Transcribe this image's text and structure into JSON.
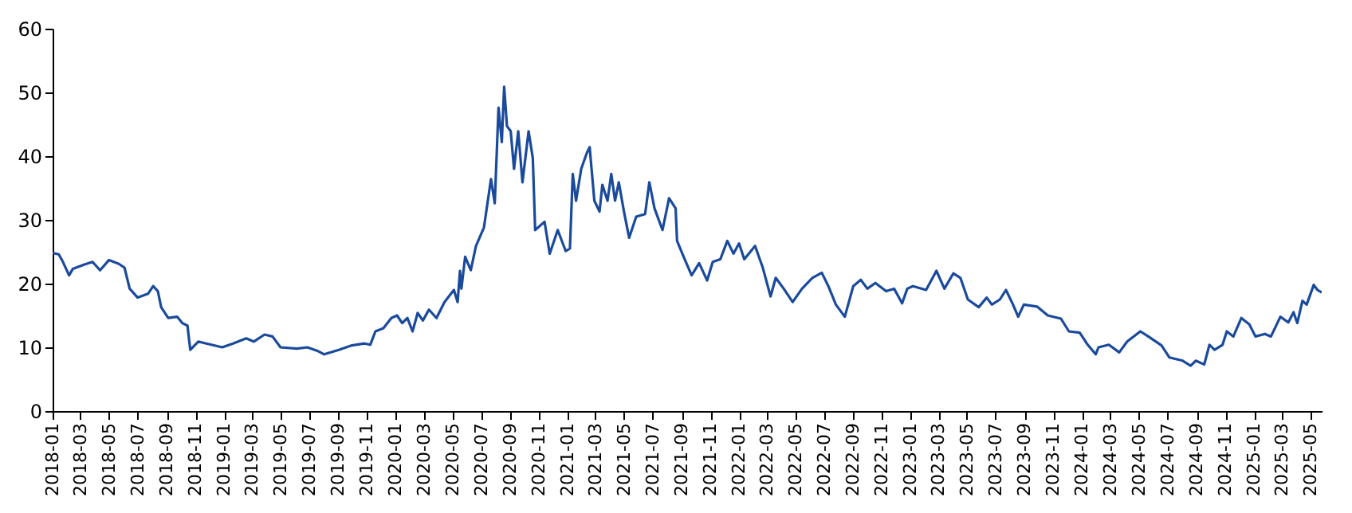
{
  "chart_data": {
    "type": "line",
    "color": "#1a4a9c",
    "grid": false,
    "xlim": [
      "2018-01-01",
      "2025-05-25"
    ],
    "ylim": [
      0,
      60
    ],
    "yticks": [
      0,
      10,
      20,
      30,
      40,
      50,
      60
    ],
    "xticks": [
      "2018-01",
      "2018-03",
      "2018-05",
      "2018-07",
      "2018-09",
      "2018-11",
      "2019-01",
      "2019-03",
      "2019-05",
      "2019-07",
      "2019-09",
      "2019-11",
      "2020-01",
      "2020-03",
      "2020-05",
      "2020-07",
      "2020-09",
      "2020-11",
      "2021-01",
      "2021-03",
      "2021-05",
      "2021-07",
      "2021-09",
      "2021-11",
      "2022-01",
      "2022-03",
      "2022-05",
      "2022-07",
      "2022-09",
      "2022-11",
      "2023-01",
      "2023-03",
      "2023-05",
      "2023-07",
      "2023-09",
      "2023-11",
      "2024-01",
      "2024-03",
      "2024-05",
      "2024-07",
      "2024-09",
      "2024-11",
      "2025-01",
      "2025-03",
      "2025-05"
    ],
    "x": [
      "2018-01-01",
      "2018-01-14",
      "2018-01-23",
      "2018-02-05",
      "2018-02-13",
      "2018-03-10",
      "2018-03-27",
      "2018-04-12",
      "2018-05-01",
      "2018-05-22",
      "2018-06-03",
      "2018-06-14",
      "2018-07-01",
      "2018-07-23",
      "2018-08-03",
      "2018-08-13",
      "2018-08-20",
      "2018-09-04",
      "2018-09-23",
      "2018-10-04",
      "2018-10-15",
      "2018-10-21",
      "2018-11-07",
      "2018-12-05",
      "2018-12-28",
      "2019-01-20",
      "2019-02-17",
      "2019-03-05",
      "2019-03-28",
      "2019-04-14",
      "2019-05-01",
      "2019-06-05",
      "2019-06-27",
      "2019-07-20",
      "2019-08-02",
      "2019-09-02",
      "2019-09-30",
      "2019-10-27",
      "2019-11-08",
      "2019-11-19",
      "2019-12-06",
      "2019-12-23",
      "2020-01-04",
      "2020-01-15",
      "2020-01-26",
      "2020-02-06",
      "2020-02-17",
      "2020-02-28",
      "2020-03-12",
      "2020-03-28",
      "2020-04-14",
      "2020-05-04",
      "2020-05-12",
      "2020-05-17",
      "2020-05-20",
      "2020-05-28",
      "2020-06-09",
      "2020-06-20",
      "2020-07-07",
      "2020-07-22",
      "2020-07-30",
      "2020-08-07",
      "2020-08-14",
      "2020-08-19",
      "2020-08-25",
      "2020-09-02",
      "2020-09-09",
      "2020-09-18",
      "2020-09-27",
      "2020-10-10",
      "2020-10-19",
      "2020-10-24",
      "2020-11-13",
      "2020-11-24",
      "2020-12-11",
      "2020-12-28",
      "2021-01-06",
      "2021-01-12",
      "2021-01-19",
      "2021-01-30",
      "2021-02-11",
      "2021-02-17",
      "2021-02-27",
      "2021-03-10",
      "2021-03-16",
      "2021-03-27",
      "2021-04-04",
      "2021-04-12",
      "2021-04-20",
      "2021-05-01",
      "2021-05-12",
      "2021-05-27",
      "2021-06-15",
      "2021-06-24",
      "2021-07-05",
      "2021-07-22",
      "2021-08-05",
      "2021-08-19",
      "2021-08-22",
      "2021-09-05",
      "2021-09-22",
      "2021-10-08",
      "2021-10-25",
      "2021-11-06",
      "2021-11-22",
      "2021-12-07",
      "2021-12-20",
      "2022-01-01",
      "2022-01-12",
      "2022-02-04",
      "2022-02-20",
      "2022-03-09",
      "2022-03-20",
      "2022-04-06",
      "2022-04-25",
      "2022-05-15",
      "2022-06-06",
      "2022-06-26",
      "2022-07-10",
      "2022-07-26",
      "2022-08-14",
      "2022-09-01",
      "2022-09-17",
      "2022-10-01",
      "2022-10-18",
      "2022-11-10",
      "2022-11-27",
      "2022-12-14",
      "2022-12-25",
      "2023-01-06",
      "2023-02-03",
      "2023-02-25",
      "2023-03-14",
      "2023-04-02",
      "2023-04-17",
      "2023-05-03",
      "2023-05-26",
      "2023-06-12",
      "2023-06-23",
      "2023-07-10",
      "2023-07-23",
      "2023-08-07",
      "2023-08-18",
      "2023-08-30",
      "2023-09-27",
      "2023-10-20",
      "2023-11-17",
      "2023-12-04",
      "2023-12-27",
      "2024-01-13",
      "2024-01-30",
      "2024-02-05",
      "2024-02-27",
      "2024-03-20",
      "2024-04-06",
      "2024-05-04",
      "2024-05-21",
      "2024-06-18",
      "2024-07-05",
      "2024-08-02",
      "2024-08-19",
      "2024-08-30",
      "2024-09-17",
      "2024-09-28",
      "2024-10-09",
      "2024-10-26",
      "2024-11-04",
      "2024-11-18",
      "2024-12-05",
      "2024-12-22",
      "2025-01-04",
      "2025-01-24",
      "2025-02-06",
      "2025-02-26",
      "2025-03-15",
      "2025-03-26",
      "2025-04-03",
      "2025-04-14",
      "2025-04-23",
      "2025-05-08",
      "2025-05-16",
      "2025-05-25"
    ],
    "values": [
      24.8,
      24.6,
      23.4,
      21.3,
      22.3,
      23,
      23.4,
      22.1,
      23.7,
      23.1,
      22.5,
      19.2,
      17.8,
      18.4,
      19.6,
      18.8,
      16.3,
      14.6,
      14.8,
      13.8,
      13.4,
      9.6,
      10.9,
      10.4,
      10,
      10.6,
      11.4,
      10.9,
      12,
      11.7,
      10,
      9.8,
      10,
      9.4,
      8.9,
      9.6,
      10.3,
      10.6,
      10.4,
      12.5,
      13,
      14.6,
      15,
      13.8,
      14.6,
      12.5,
      15.4,
      14.2,
      15.9,
      14.6,
      17.1,
      19,
      17.1,
      22,
      19.2,
      24.2,
      22.1,
      25.9,
      28.8,
      36.4,
      32.6,
      47.6,
      42.2,
      50.9,
      44.7,
      43.9,
      38,
      43.9,
      35.9,
      43.9,
      39.7,
      28.4,
      29.7,
      24.7,
      28.4,
      25.1,
      25.5,
      37.2,
      33,
      38,
      40.5,
      41.4,
      33,
      31.3,
      35.5,
      33,
      37.2,
      33,
      35.9,
      31.3,
      27.2,
      30.5,
      30.9,
      35.9,
      31.8,
      28.4,
      33.4,
      31.8,
      26.7,
      24.2,
      21.3,
      23.2,
      20.5,
      23.4,
      23.8,
      26.7,
      24.7,
      26.3,
      23.8,
      25.9,
      22.6,
      18,
      20.9,
      19.2,
      17.1,
      19.2,
      20.9,
      21.7,
      19.6,
      16.7,
      14.8,
      19.6,
      20.6,
      19.2,
      20.1,
      18.8,
      19.2,
      16.9,
      19.2,
      19.6,
      19,
      22,
      19.2,
      21.6,
      20.9,
      17.5,
      16.3,
      17.8,
      16.7,
      17.5,
      19,
      16.7,
      14.8,
      16.7,
      16.4,
      15,
      14.5,
      12.5,
      12.3,
      10.4,
      8.9,
      10,
      10.4,
      9.2,
      10.9,
      12.5,
      11.7,
      10.3,
      8.4,
      7.9,
      7.1,
      7.9,
      7.3,
      10.4,
      9.6,
      10.4,
      12.5,
      11.7,
      14.6,
      13.6,
      11.7,
      12.1,
      11.7,
      14.8,
      13.9,
      15.5,
      13.8,
      17.3,
      16.7,
      19.8,
      19,
      18.6
    ]
  }
}
